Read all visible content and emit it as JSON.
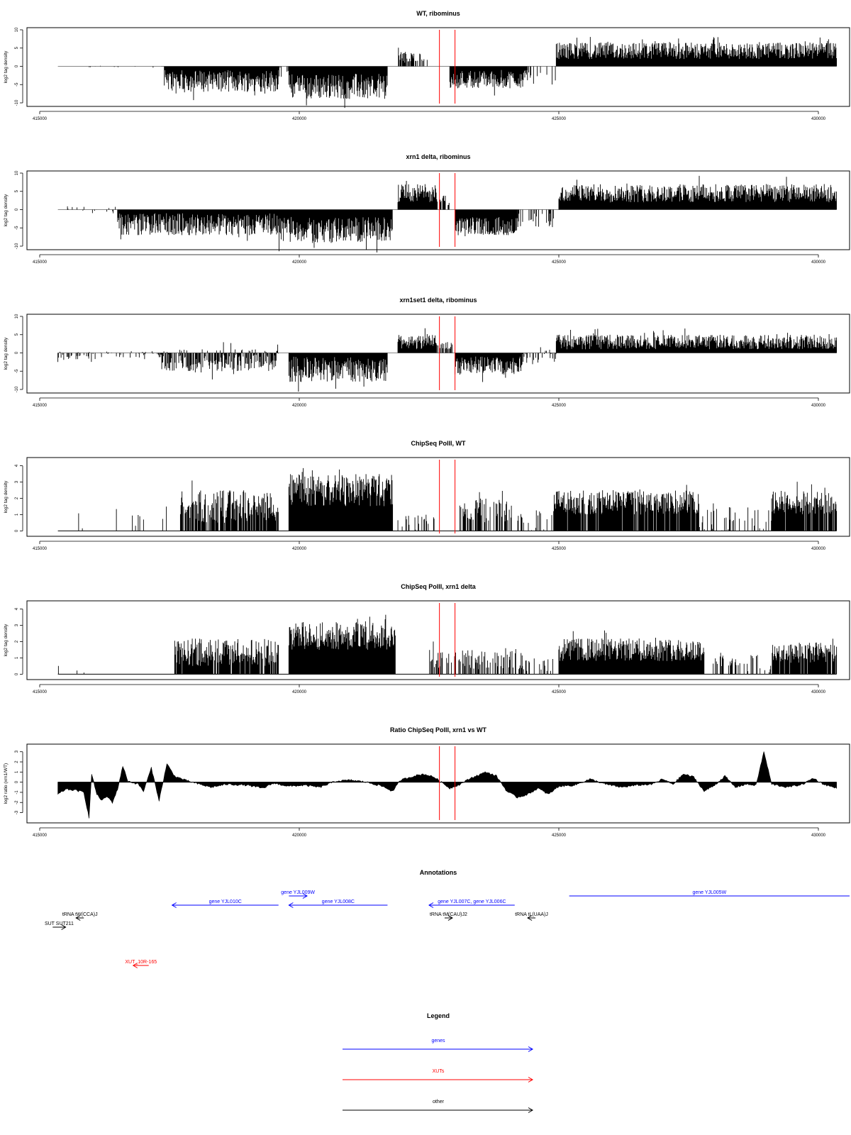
{
  "colors": {
    "bars": "#000000",
    "markers": "#ff0000",
    "genes": "#0000ff",
    "xuts": "#ff0000",
    "other": "#000000",
    "frame": "#000000"
  },
  "chart_data": [
    {
      "type": "bar",
      "title": "WT, ribominus",
      "ylabel": "log2 tag density",
      "ylim": [
        -10,
        10
      ],
      "yticks": [
        -10,
        -5,
        0,
        5,
        10
      ],
      "xlim": [
        414800,
        430800
      ],
      "xticks": [
        415000,
        420000,
        425000,
        430000
      ],
      "markers_x": [
        422700,
        423000
      ],
      "profile": [
        {
          "x": [
            415350,
            417400
          ],
          "y": [
            -0.5,
            0.5
          ],
          "density": 0.06
        },
        {
          "x": [
            417400,
            419600
          ],
          "y": [
            -7,
            -1
          ],
          "density": 1
        },
        {
          "x": [
            419600,
            419800
          ],
          "y": [
            -3,
            0
          ],
          "density": 0.3
        },
        {
          "x": [
            419800,
            421700
          ],
          "y": [
            -9,
            -2
          ],
          "density": 1
        },
        {
          "x": [
            421900,
            422500
          ],
          "y": [
            1,
            4
          ],
          "density": 0.6
        },
        {
          "x": [
            422900,
            424400
          ],
          "y": [
            -6,
            -1
          ],
          "density": 1
        },
        {
          "x": [
            424400,
            424950
          ],
          "y": [
            -5,
            0
          ],
          "density": 0.15
        },
        {
          "x": [
            424950,
            430350
          ],
          "y": [
            2,
            6.5
          ],
          "density": 1
        }
      ]
    },
    {
      "type": "bar",
      "title": "xrn1 delta, ribominus",
      "ylabel": "log2 tag density",
      "ylim": [
        -10,
        10
      ],
      "yticks": [
        -10,
        -5,
        0,
        5,
        10
      ],
      "xlim": [
        414800,
        430800
      ],
      "xticks": [
        415000,
        420000,
        425000,
        430000
      ],
      "markers_x": [
        422700,
        423000
      ],
      "profile": [
        {
          "x": [
            415350,
            416500
          ],
          "y": [
            -1,
            1
          ],
          "density": 0.12
        },
        {
          "x": [
            416500,
            419600
          ],
          "y": [
            -7,
            -1
          ],
          "density": 1
        },
        {
          "x": [
            419600,
            421800
          ],
          "y": [
            -9,
            -2
          ],
          "density": 1
        },
        {
          "x": [
            421900,
            422650
          ],
          "y": [
            2,
            7
          ],
          "density": 1
        },
        {
          "x": [
            422650,
            422950
          ],
          "y": [
            1,
            4
          ],
          "density": 0.5
        },
        {
          "x": [
            423000,
            424200
          ],
          "y": [
            -7,
            -2
          ],
          "density": 1
        },
        {
          "x": [
            424200,
            424900
          ],
          "y": [
            -5,
            -1
          ],
          "density": 0.35
        },
        {
          "x": [
            425000,
            430350
          ],
          "y": [
            2,
            7
          ],
          "density": 1
        }
      ]
    },
    {
      "type": "bar",
      "title": "xrn1set1 delta, ribominus",
      "ylabel": "log2 tag density",
      "ylim": [
        -10,
        10
      ],
      "yticks": [
        -10,
        -5,
        0,
        5,
        10
      ],
      "xlim": [
        414800,
        430800
      ],
      "xticks": [
        415000,
        420000,
        425000,
        430000
      ],
      "markers_x": [
        422700,
        423000
      ],
      "profile": [
        {
          "x": [
            415350,
            417300
          ],
          "y": [
            -2,
            0.5
          ],
          "density": 0.25
        },
        {
          "x": [
            417300,
            419600
          ],
          "y": [
            -5,
            1
          ],
          "density": 0.8
        },
        {
          "x": [
            419800,
            421700
          ],
          "y": [
            -8,
            -1
          ],
          "density": 1
        },
        {
          "x": [
            421900,
            422650
          ],
          "y": [
            1,
            5
          ],
          "density": 1
        },
        {
          "x": [
            422650,
            422950
          ],
          "y": [
            1,
            3
          ],
          "density": 0.5
        },
        {
          "x": [
            423000,
            424300
          ],
          "y": [
            -6,
            -1
          ],
          "density": 1
        },
        {
          "x": [
            424300,
            424950
          ],
          "y": [
            -3,
            1
          ],
          "density": 0.3
        },
        {
          "x": [
            424950,
            430350
          ],
          "y": [
            1,
            5
          ],
          "density": 1
        }
      ]
    },
    {
      "type": "bar",
      "title": "ChipSeq PolII, WT",
      "ylabel": "log2 tag density",
      "ylim": [
        -0.2,
        4.2
      ],
      "yticks": [
        0,
        1,
        2,
        3,
        4
      ],
      "xlim": [
        414800,
        430800
      ],
      "xticks": [
        415000,
        420000,
        425000,
        430000
      ],
      "markers_x": [
        422700,
        423000
      ],
      "profile": [
        {
          "x": [
            415350,
            417700
          ],
          "y": [
            0,
            1.5
          ],
          "density": 0.06
        },
        {
          "x": [
            417700,
            419600
          ],
          "y": [
            0.5,
            2.5
          ],
          "density": 0.8
        },
        {
          "x": [
            419800,
            421800
          ],
          "y": [
            1.5,
            3.5
          ],
          "density": 1
        },
        {
          "x": [
            421900,
            422600
          ],
          "y": [
            0,
            1
          ],
          "density": 0.3
        },
        {
          "x": [
            423000,
            424300
          ],
          "y": [
            0.5,
            2
          ],
          "density": 0.45
        },
        {
          "x": [
            424300,
            424900
          ],
          "y": [
            0,
            1.5
          ],
          "density": 0.2
        },
        {
          "x": [
            424900,
            427700
          ],
          "y": [
            1,
            2.5
          ],
          "density": 0.9
        },
        {
          "x": [
            427700,
            429100
          ],
          "y": [
            0,
            1.5
          ],
          "density": 0.25
        },
        {
          "x": [
            429100,
            430350
          ],
          "y": [
            1,
            2.5
          ],
          "density": 0.9
        }
      ]
    },
    {
      "type": "bar",
      "title": "ChipSeq PolII, xrn1 delta",
      "ylabel": "log2 tag density",
      "ylim": [
        -0.2,
        4.2
      ],
      "yticks": [
        0,
        1,
        2,
        3,
        4
      ],
      "xlim": [
        414800,
        430800
      ],
      "xticks": [
        415000,
        420000,
        425000,
        430000
      ],
      "markers_x": [
        422700,
        423000
      ],
      "profile": [
        {
          "x": [
            415350,
            415900
          ],
          "y": [
            0,
            0.7
          ],
          "density": 0.08
        },
        {
          "x": [
            417600,
            419600
          ],
          "y": [
            0.5,
            2.2
          ],
          "density": 0.9
        },
        {
          "x": [
            419800,
            421850
          ],
          "y": [
            1.5,
            3.2
          ],
          "density": 1
        },
        {
          "x": [
            422500,
            424300
          ],
          "y": [
            0.3,
            1.5
          ],
          "density": 0.4
        },
        {
          "x": [
            424300,
            424900
          ],
          "y": [
            0,
            1
          ],
          "density": 0.2
        },
        {
          "x": [
            425000,
            427800
          ],
          "y": [
            0.8,
            2.2
          ],
          "density": 1
        },
        {
          "x": [
            427800,
            429100
          ],
          "y": [
            0,
            1.2
          ],
          "density": 0.25
        },
        {
          "x": [
            429100,
            430350
          ],
          "y": [
            0.7,
            2
          ],
          "density": 0.9
        }
      ]
    },
    {
      "type": "area",
      "title": "Ratio ChipSeq PolII, xrn1 vs WT",
      "ylabel": "log2 ratio (xrn1/WT)",
      "ylim": [
        -3.8,
        3.4
      ],
      "yticks": [
        -3,
        -2,
        -1,
        0,
        1,
        2,
        3
      ],
      "xlim": [
        414800,
        430800
      ],
      "xticks": [
        415000,
        420000,
        425000,
        430000
      ],
      "markers_x": [
        422700,
        423000
      ],
      "curve": [
        [
          415350,
          -1.2
        ],
        [
          415500,
          -0.7
        ],
        [
          415700,
          -0.8
        ],
        [
          415850,
          -1.0
        ],
        [
          415950,
          -3.5
        ],
        [
          416000,
          0.8
        ],
        [
          416100,
          -1.2
        ],
        [
          416200,
          -1.8
        ],
        [
          416300,
          -1.4
        ],
        [
          416400,
          -2.0
        ],
        [
          416500,
          -0.7
        ],
        [
          416600,
          1.6
        ],
        [
          416700,
          0.1
        ],
        [
          416900,
          -0.2
        ],
        [
          417000,
          -0.9
        ],
        [
          417150,
          1.4
        ],
        [
          417300,
          -1.8
        ],
        [
          417450,
          1.8
        ],
        [
          417600,
          0.6
        ],
        [
          417800,
          0.2
        ],
        [
          418000,
          -0.1
        ],
        [
          418300,
          -0.5
        ],
        [
          418600,
          -0.2
        ],
        [
          419000,
          -0.3
        ],
        [
          419300,
          -0.6
        ],
        [
          419500,
          -0.1
        ],
        [
          419800,
          -0.4
        ],
        [
          420100,
          -0.3
        ],
        [
          420400,
          -0.5
        ],
        [
          420700,
          0.1
        ],
        [
          421000,
          0.2
        ],
        [
          421300,
          0.0
        ],
        [
          421600,
          -0.4
        ],
        [
          421800,
          -0.9
        ],
        [
          421950,
          0.2
        ],
        [
          422200,
          0.6
        ],
        [
          422400,
          0.8
        ],
        [
          422600,
          0.5
        ],
        [
          422900,
          -0.6
        ],
        [
          423100,
          -0.2
        ],
        [
          423300,
          0.4
        ],
        [
          423600,
          1.0
        ],
        [
          423800,
          0.6
        ],
        [
          424000,
          -0.9
        ],
        [
          424200,
          -1.5
        ],
        [
          424400,
          -1.2
        ],
        [
          424600,
          -0.6
        ],
        [
          424800,
          -1.2
        ],
        [
          425000,
          -0.4
        ],
        [
          425300,
          -0.3
        ],
        [
          425600,
          0.3
        ],
        [
          425900,
          -0.2
        ],
        [
          426200,
          -0.5
        ],
        [
          426500,
          -0.3
        ],
        [
          426800,
          -0.2
        ],
        [
          427000,
          0.3
        ],
        [
          427200,
          -0.2
        ],
        [
          427400,
          0.8
        ],
        [
          427600,
          0.5
        ],
        [
          427800,
          -0.9
        ],
        [
          428000,
          -0.3
        ],
        [
          428200,
          0.6
        ],
        [
          428400,
          -0.5
        ],
        [
          428600,
          -0.2
        ],
        [
          428800,
          -0.3
        ],
        [
          428950,
          3.0
        ],
        [
          429100,
          -0.2
        ],
        [
          429400,
          -0.5
        ],
        [
          429700,
          -0.2
        ],
        [
          429900,
          0.4
        ],
        [
          430100,
          -0.2
        ],
        [
          430350,
          -0.6
        ]
      ]
    }
  ],
  "annotations": {
    "title": "Annotations",
    "items": [
      {
        "label": "gene YJL010C",
        "category": "genes",
        "start": 419600,
        "end": 417550,
        "row": 1
      },
      {
        "label": "gene YJL009W",
        "category": "genes",
        "start": 419800,
        "end": 420150,
        "row": 0
      },
      {
        "label": "gene YJL008C",
        "category": "genes",
        "start": 421700,
        "end": 419800,
        "row": 1
      },
      {
        "label": "gene YJL007C, gene YJL006C",
        "category": "genes",
        "start": 424150,
        "end": 422500,
        "row": 1
      },
      {
        "label": "gene YJL005W",
        "category": "genes",
        "start": 425200,
        "end": 430800,
        "row": 0
      },
      {
        "label": "tRNA tW(CCA)J",
        "category": "other",
        "start": 415850,
        "end": 415700,
        "row": 2
      },
      {
        "label": "tRNA tM(CAU)J2",
        "category": "other",
        "start": 422800,
        "end": 422950,
        "row": 2
      },
      {
        "label": "tRNA tL(UAA)J",
        "category": "other",
        "start": 424550,
        "end": 424400,
        "row": 2
      },
      {
        "label": "SUT SUT211",
        "category": "other",
        "start": 415250,
        "end": 415500,
        "row": 3
      },
      {
        "label": "XUT_10R-165",
        "category": "xuts",
        "start": 417100,
        "end": 416800,
        "row": 5
      }
    ]
  },
  "legend": {
    "title": "Legend",
    "items": [
      {
        "label": "genes",
        "category": "genes"
      },
      {
        "label": "XUTs",
        "category": "xuts"
      },
      {
        "label": "other",
        "category": "other"
      }
    ]
  }
}
